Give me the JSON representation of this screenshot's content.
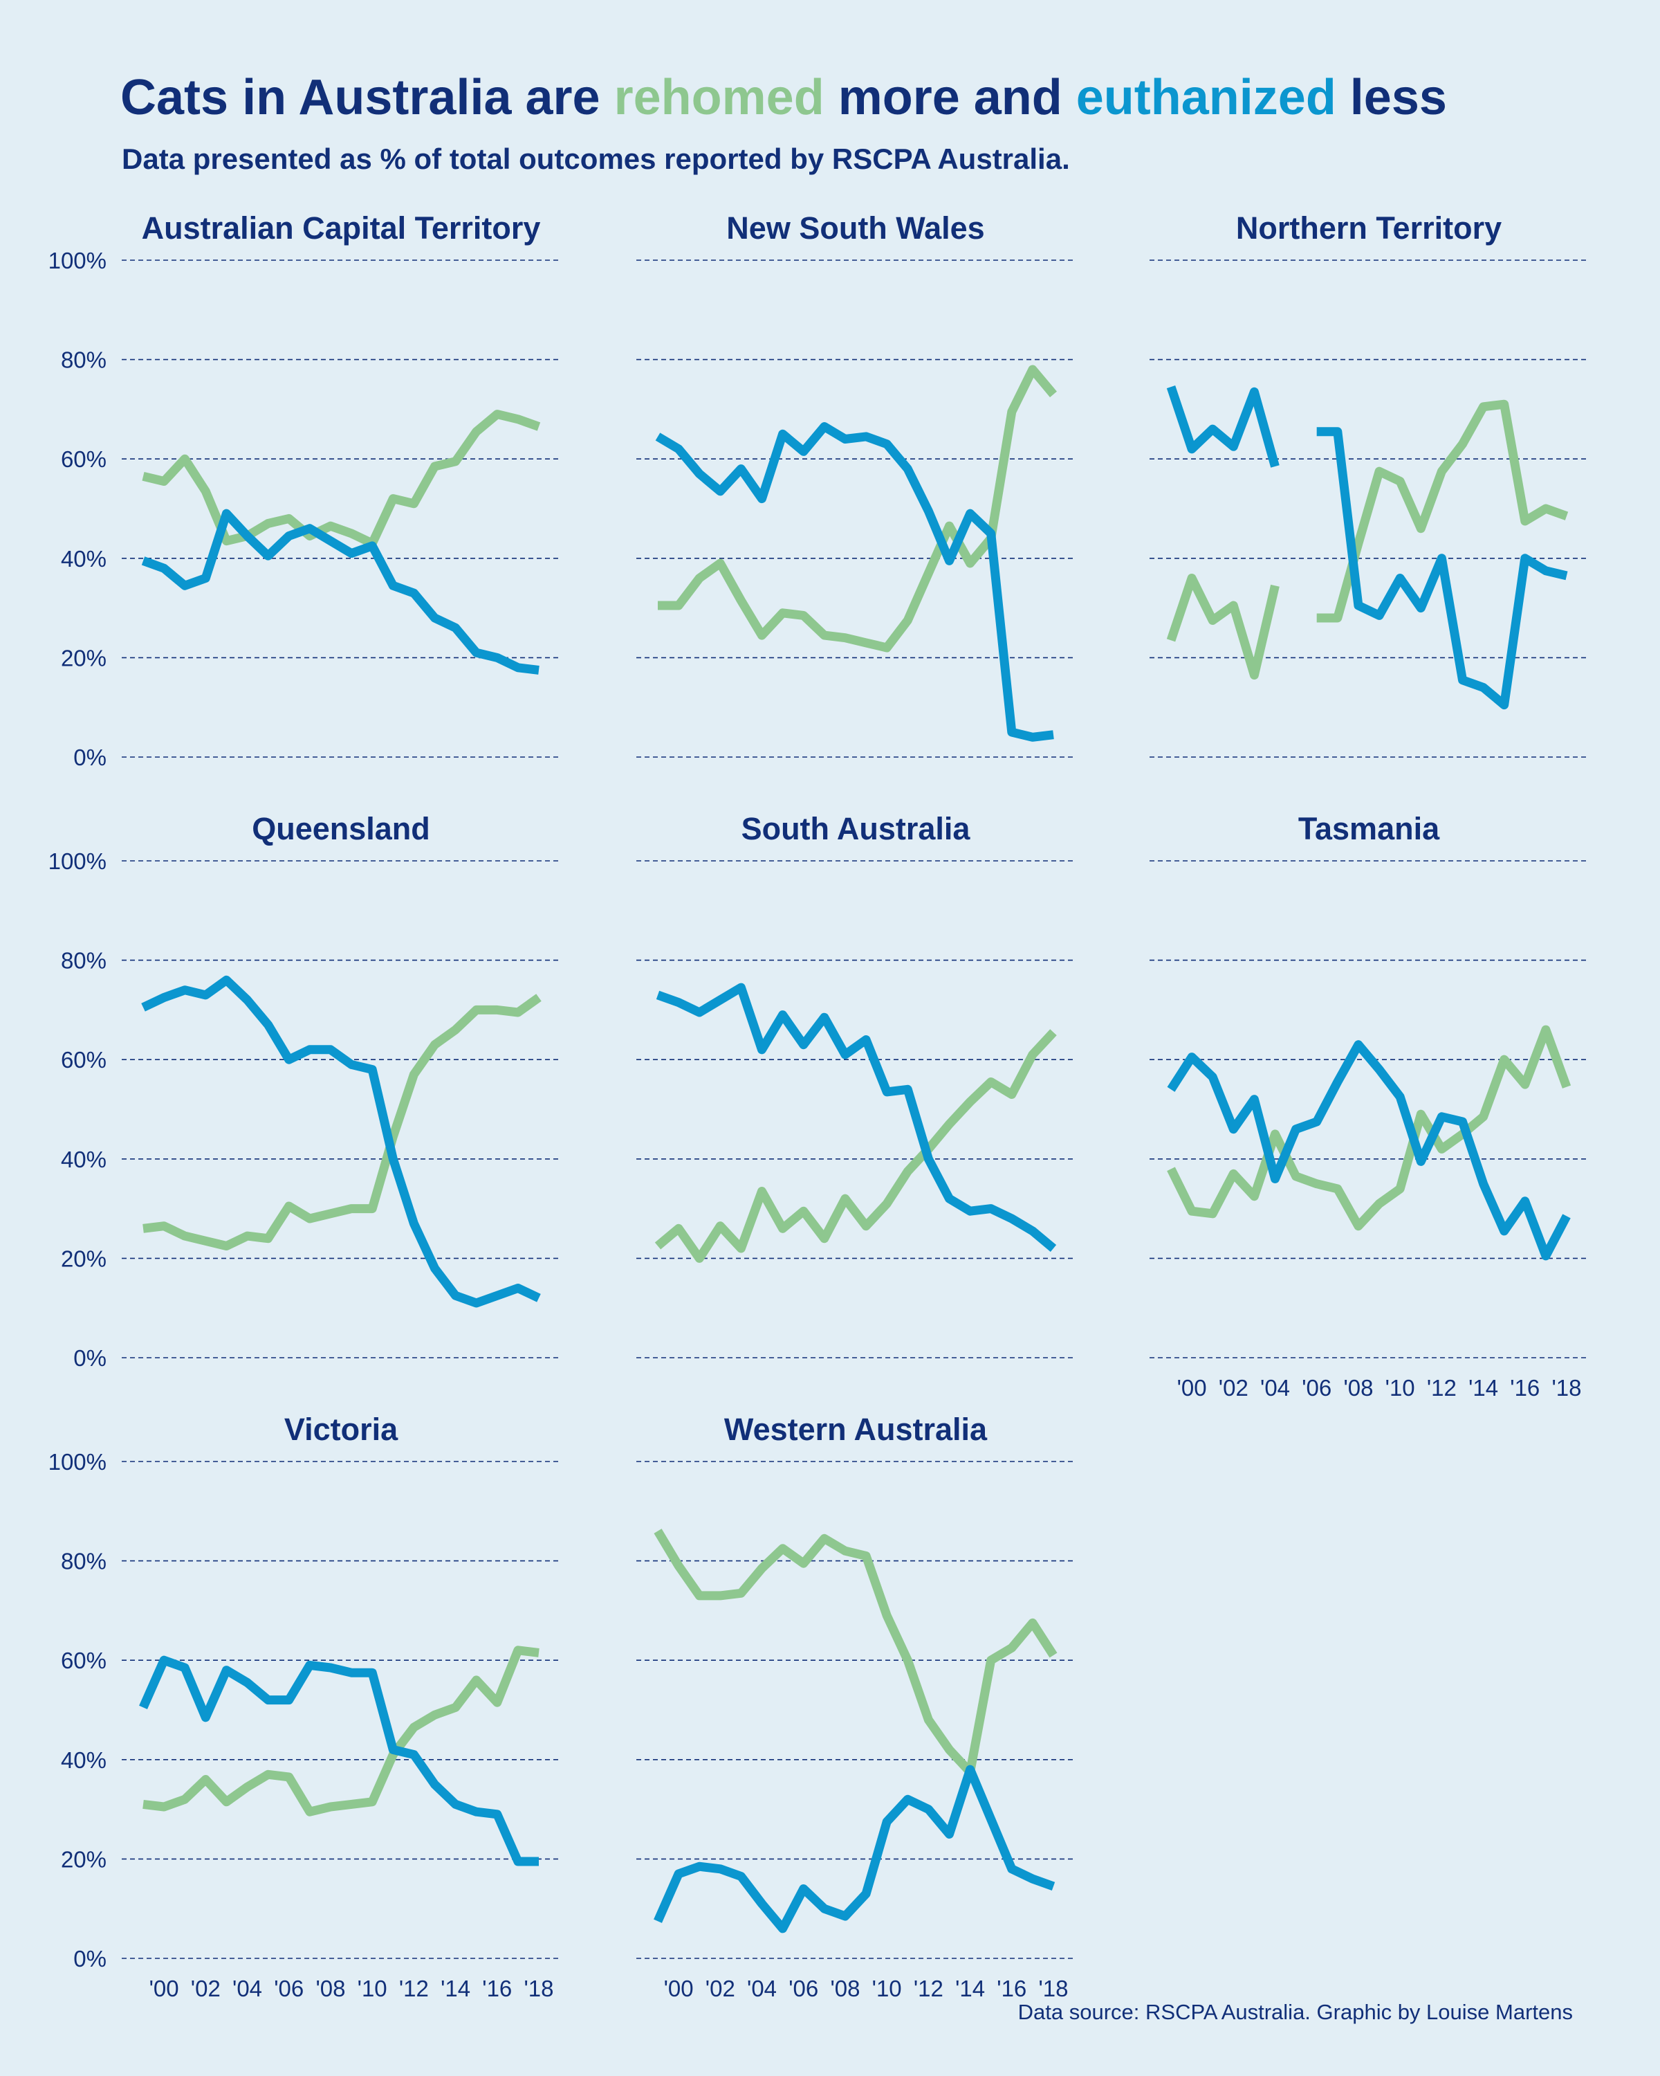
{
  "title": {
    "part1": "Cats in Australia are ",
    "rehomed": "rehomed",
    "part2": " more and ",
    "euthanized": "euthanized",
    "part3": " less"
  },
  "subtitle": "Data presented as % of total outcomes reported by RSCPA Australia.",
  "source": "Data source: RSCPA Australia. Graphic by Louise Martens",
  "colors": {
    "background": "#e2eef5",
    "text": "#112f78",
    "rehomed": "#8ec78f",
    "euthanized": "#0b96cf"
  },
  "chart_data": {
    "type": "line",
    "layout": "small multiples, 3 columns",
    "x_years": [
      1999,
      2000,
      2001,
      2002,
      2003,
      2004,
      2005,
      2006,
      2007,
      2008,
      2009,
      2010,
      2011,
      2012,
      2013,
      2014,
      2015,
      2016,
      2017,
      2018
    ],
    "x_tick_values": [
      2000,
      2002,
      2004,
      2006,
      2008,
      2010,
      2012,
      2014,
      2016,
      2018
    ],
    "x_tick_labels": [
      "'00",
      "'02",
      "'04",
      "'06",
      "'08",
      "'10",
      "'12",
      "'14",
      "'16",
      "'18"
    ],
    "y_ticks": [
      0,
      20,
      40,
      60,
      80,
      100
    ],
    "y_tick_labels": [
      "0%",
      "20%",
      "40%",
      "60%",
      "80%",
      "100%"
    ],
    "ylim": [
      0,
      100
    ],
    "grid": "horizontal dashed",
    "series_keys": [
      "euthanized",
      "rehomed"
    ],
    "panels": [
      {
        "name": "Australian Capital Territory",
        "euthanized": [
          39.5,
          38,
          34.5,
          36,
          49,
          44.5,
          40.5,
          44.5,
          46,
          43.5,
          41,
          42.5,
          34.5,
          33,
          28,
          26,
          21,
          20,
          18,
          17.5
        ],
        "rehomed": [
          56.5,
          55.5,
          60,
          53.5,
          43.5,
          44.5,
          47,
          48,
          44.5,
          46.5,
          45,
          43,
          52,
          51,
          58.5,
          59.5,
          65.5,
          69,
          68,
          66.5
        ]
      },
      {
        "name": "New South Wales",
        "euthanized": [
          64.5,
          62,
          57,
          53.5,
          58,
          52,
          65,
          61.5,
          66.5,
          64,
          64.5,
          63,
          58,
          49.5,
          39.5,
          49,
          45,
          5,
          4,
          4.5
        ],
        "rehomed": [
          30.5,
          30.5,
          36,
          39,
          31.5,
          24.5,
          29,
          28.5,
          24.5,
          24,
          23,
          22,
          27.5,
          37,
          46.5,
          39,
          44,
          69.5,
          78,
          73
        ]
      },
      {
        "name": "Northern Territory",
        "euthanized": [
          74.5,
          62,
          66,
          62.5,
          73.5,
          58.5,
          null,
          65.5,
          65.5,
          30.5,
          28.5,
          36,
          30,
          40,
          15.5,
          14,
          10.5,
          40,
          37.5,
          36.5
        ],
        "rehomed": [
          23.5,
          36,
          27.5,
          30.5,
          16.5,
          34.5,
          null,
          28,
          28,
          43,
          57.5,
          55.5,
          46,
          57.5,
          63,
          70.5,
          71,
          47.5,
          50,
          48.5
        ]
      },
      {
        "name": "Queensland",
        "euthanized": [
          70.5,
          72.5,
          74,
          73,
          76,
          72,
          67,
          60,
          62,
          62,
          59,
          58,
          40,
          27,
          18,
          12.5,
          11,
          12.5,
          14,
          12
        ],
        "rehomed": [
          26,
          26.5,
          24.5,
          23.5,
          22.5,
          24.5,
          24,
          30.5,
          28,
          29,
          30,
          30,
          44.5,
          57,
          63,
          66,
          70,
          70,
          69.5,
          72.5
        ]
      },
      {
        "name": "South Australia",
        "euthanized": [
          73,
          71.5,
          69.5,
          72,
          74.5,
          62,
          69,
          63,
          68.5,
          61,
          64,
          53.5,
          54,
          40,
          32,
          29.5,
          30,
          28,
          25.5,
          22
        ],
        "rehomed": [
          22.5,
          26,
          20,
          26.5,
          22,
          33.5,
          26,
          29.5,
          24,
          32,
          26.5,
          31,
          37.5,
          42,
          47,
          51.5,
          55.5,
          53,
          61,
          65.5
        ]
      },
      {
        "name": "Tasmania",
        "euthanized": [
          54,
          60.5,
          56.5,
          46,
          52,
          36,
          46,
          47.5,
          55.5,
          63,
          58,
          52.5,
          39.5,
          48.5,
          47.5,
          35,
          25.5,
          31.5,
          20.5,
          28.5
        ],
        "rehomed": [
          38,
          29.5,
          29,
          37,
          32.5,
          45,
          36.5,
          35,
          34,
          26.5,
          31,
          34,
          49,
          42,
          45,
          48.5,
          60,
          55,
          66,
          54.5
        ]
      },
      {
        "name": "Victoria",
        "euthanized": [
          50.5,
          60,
          58.5,
          48.5,
          58,
          55.5,
          52,
          52,
          59,
          58.5,
          57.5,
          57.5,
          42,
          41,
          35,
          31,
          29.5,
          29,
          19.5,
          19.5
        ],
        "rehomed": [
          31,
          30.5,
          32,
          36,
          31.5,
          34.5,
          37,
          36.5,
          29.5,
          30.5,
          31,
          31.5,
          41,
          46.5,
          49,
          50.5,
          56,
          51.5,
          62,
          61.5
        ]
      },
      {
        "name": "Western Australia",
        "euthanized": [
          7.5,
          17,
          18.5,
          18,
          16.5,
          11,
          6,
          14,
          10,
          8.5,
          13,
          27.5,
          32,
          30,
          25,
          38,
          28,
          18,
          16,
          14.5
        ],
        "rehomed": [
          86,
          79,
          73,
          73,
          73.5,
          78.5,
          82.5,
          79.5,
          84.5,
          82,
          81,
          69,
          60,
          48,
          42,
          37.5,
          60,
          62.5,
          67.5,
          61
        ]
      }
    ],
    "x_axis_shown_under": [
      "Tasmania",
      "Victoria",
      "Western Australia"
    ]
  }
}
